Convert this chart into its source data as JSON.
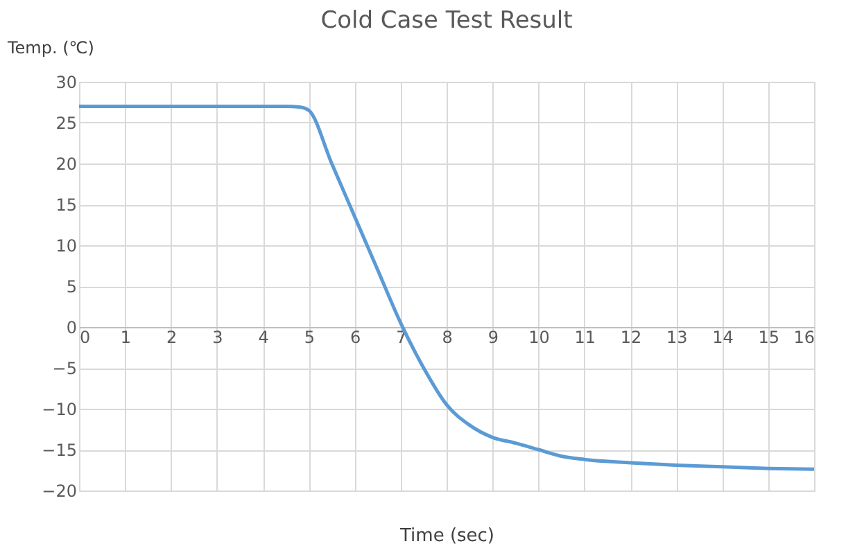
{
  "chart_data": {
    "type": "line",
    "title": "Cold Case Test Result",
    "xlabel": "Time (sec)",
    "ylabel": "Temp. (℃)",
    "x": [
      0,
      1,
      2,
      3,
      4,
      4.5,
      4.8,
      5,
      5.5,
      6,
      6.5,
      7,
      7.5,
      8,
      8.5,
      9,
      9.5,
      10,
      10.5,
      11,
      12,
      13,
      14,
      15,
      16
    ],
    "series": [
      {
        "color": "#5b9bd5",
        "values": [
          27,
          27,
          27,
          27,
          27,
          27,
          26.9,
          26.5,
          20,
          13.5,
          7,
          0.5,
          -5,
          -9.5,
          -12,
          -13.5,
          -14.2,
          -15,
          -15.8,
          -16.2,
          -16.6,
          -16.9,
          -17.1,
          -17.3,
          -17.4
        ]
      }
    ],
    "xlim": [
      0,
      16
    ],
    "xticks": [
      0,
      1,
      2,
      3,
      4,
      5,
      6,
      7,
      8,
      9,
      10,
      11,
      12,
      13,
      14,
      15,
      16
    ],
    "ylim": [
      -20,
      30
    ],
    "yticks": [
      -20,
      -15,
      -10,
      -5,
      0,
      5,
      10,
      15,
      20,
      25,
      30
    ],
    "grid": true,
    "marker": "none",
    "line_style": "solid"
  }
}
